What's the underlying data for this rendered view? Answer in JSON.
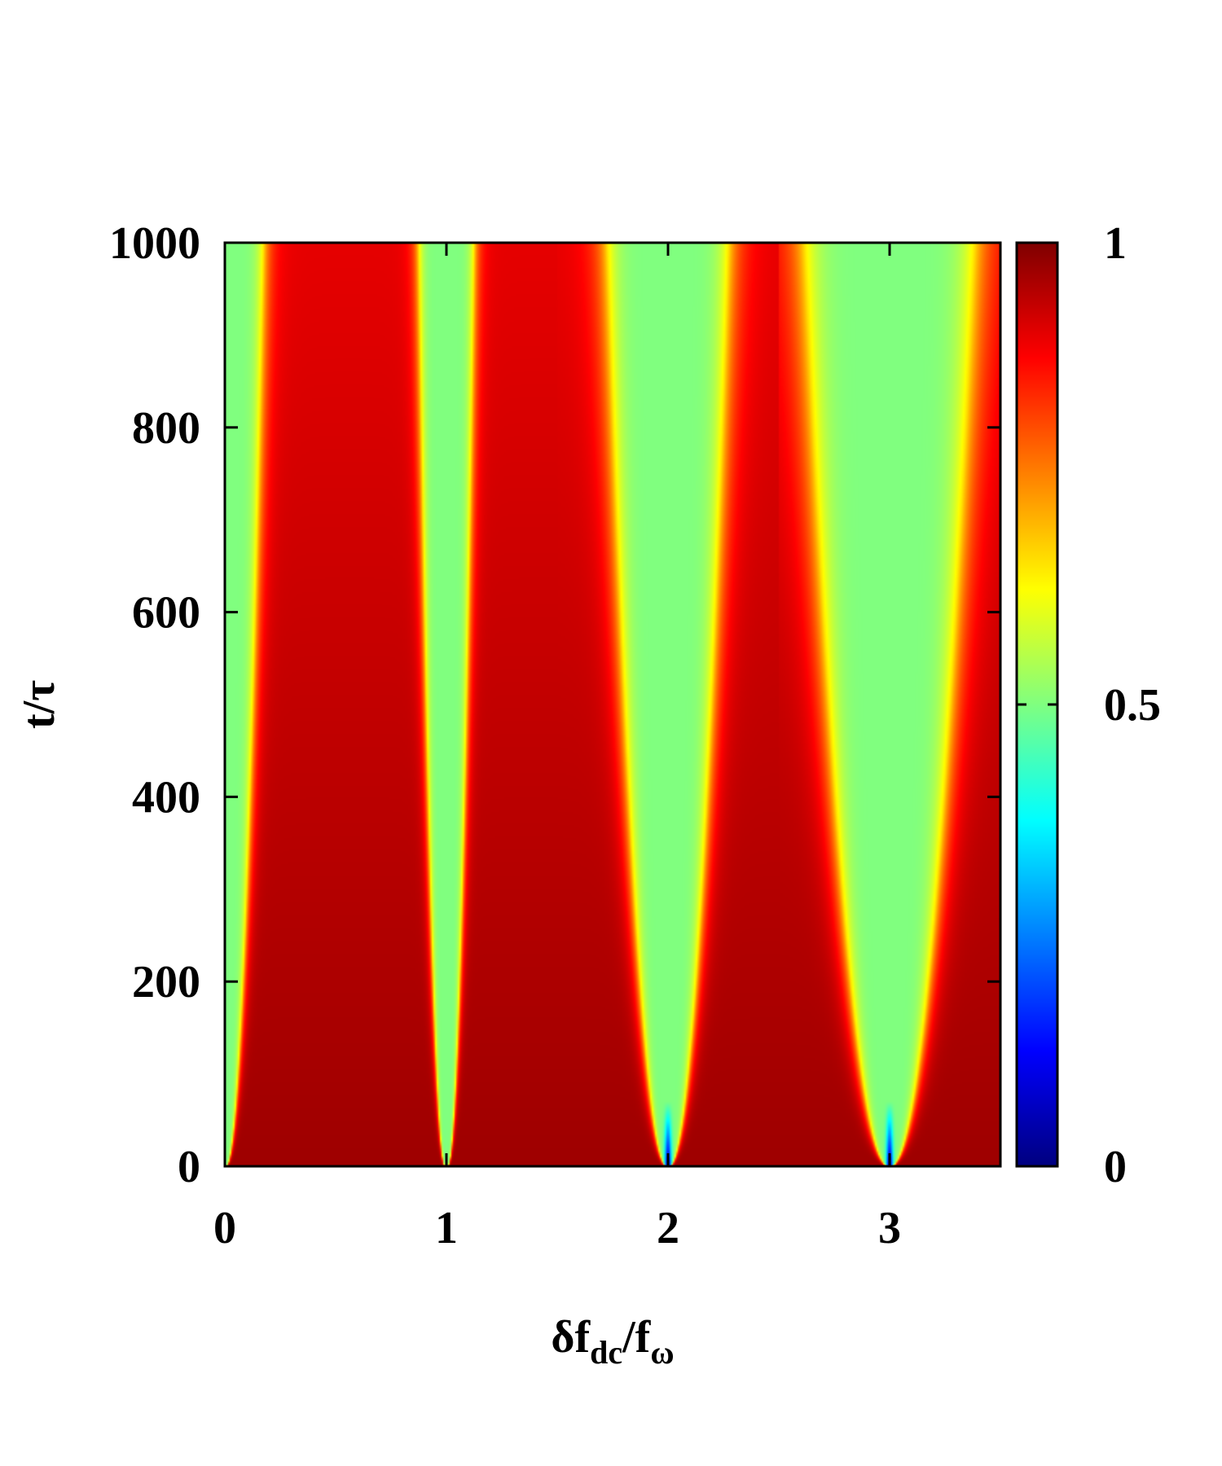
{
  "chart_data": {
    "type": "heatmap",
    "title": "",
    "xlabel": {
      "base": "δf",
      "sub": "dc",
      "mid": "/f",
      "sub2": "ω"
    },
    "ylabel": "t/τ",
    "xlim": [
      0,
      3.5
    ],
    "ylim": [
      0,
      1000
    ],
    "xticks": [
      0,
      1,
      2,
      3
    ],
    "xtick_labels": [
      "0",
      "1",
      "2",
      "3"
    ],
    "yticks": [
      0,
      200,
      400,
      600,
      800,
      1000
    ],
    "ytick_labels": [
      "0",
      "200",
      "400",
      "600",
      "800",
      "1000"
    ],
    "colorbar": {
      "range": [
        0,
        1
      ],
      "ticks": [
        0,
        0.5,
        1
      ],
      "tick_labels": [
        "0",
        "0.5",
        "1"
      ],
      "colormap": "jet",
      "stops": [
        "#00007f",
        "#0000ff",
        "#00ffff",
        "#ffff00",
        "#ff0000",
        "#7f0000"
      ]
    },
    "field": {
      "description_of_features": "resonance wedges at integer x",
      "resonances": [
        0,
        1,
        2,
        3
      ],
      "half_width_at_t1000": [
        0.17,
        0.12,
        0.27,
        0.38
      ],
      "plateau_value_in_wedge": 0.5,
      "background_value_t0": 0.97,
      "background_value_t1000": 0.9,
      "yellow_edge_value": 0.66
    },
    "grid": false,
    "legend": "none"
  }
}
